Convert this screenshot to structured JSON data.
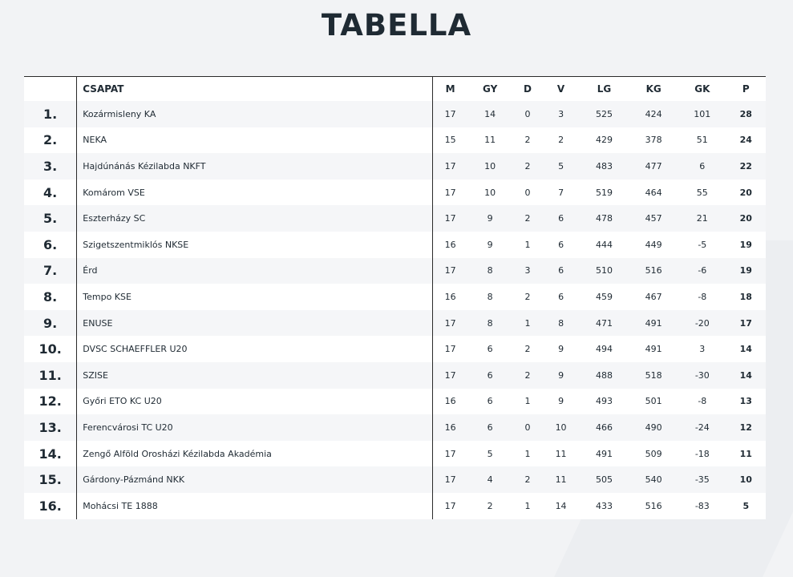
{
  "title": "TABELLA",
  "headers": {
    "rank": "",
    "team": "CSAPAT",
    "m": "M",
    "gy": "GY",
    "d": "D",
    "v": "V",
    "lg": "LG",
    "kg": "KG",
    "gk": "GK",
    "p": "P"
  },
  "rows": [
    {
      "rank": "1.",
      "team": "Kozármisleny KA",
      "m": "17",
      "gy": "14",
      "d": "0",
      "v": "3",
      "lg": "525",
      "kg": "424",
      "gk": "101",
      "p": "28"
    },
    {
      "rank": "2.",
      "team": "NEKA",
      "m": "15",
      "gy": "11",
      "d": "2",
      "v": "2",
      "lg": "429",
      "kg": "378",
      "gk": "51",
      "p": "24"
    },
    {
      "rank": "3.",
      "team": "Hajdúnánás Kézilabda NKFT",
      "m": "17",
      "gy": "10",
      "d": "2",
      "v": "5",
      "lg": "483",
      "kg": "477",
      "gk": "6",
      "p": "22"
    },
    {
      "rank": "4.",
      "team": "Komárom VSE",
      "m": "17",
      "gy": "10",
      "d": "0",
      "v": "7",
      "lg": "519",
      "kg": "464",
      "gk": "55",
      "p": "20"
    },
    {
      "rank": "5.",
      "team": "Eszterházy SC",
      "m": "17",
      "gy": "9",
      "d": "2",
      "v": "6",
      "lg": "478",
      "kg": "457",
      "gk": "21",
      "p": "20"
    },
    {
      "rank": "6.",
      "team": "Szigetszentmiklós NKSE",
      "m": "16",
      "gy": "9",
      "d": "1",
      "v": "6",
      "lg": "444",
      "kg": "449",
      "gk": "-5",
      "p": "19"
    },
    {
      "rank": "7.",
      "team": "Érd",
      "m": "17",
      "gy": "8",
      "d": "3",
      "v": "6",
      "lg": "510",
      "kg": "516",
      "gk": "-6",
      "p": "19"
    },
    {
      "rank": "8.",
      "team": "Tempo KSE",
      "m": "16",
      "gy": "8",
      "d": "2",
      "v": "6",
      "lg": "459",
      "kg": "467",
      "gk": "-8",
      "p": "18"
    },
    {
      "rank": "9.",
      "team": "ENUSE",
      "m": "17",
      "gy": "8",
      "d": "1",
      "v": "8",
      "lg": "471",
      "kg": "491",
      "gk": "-20",
      "p": "17"
    },
    {
      "rank": "10.",
      "team": "DVSC SCHAEFFLER U20",
      "m": "17",
      "gy": "6",
      "d": "2",
      "v": "9",
      "lg": "494",
      "kg": "491",
      "gk": "3",
      "p": "14"
    },
    {
      "rank": "11.",
      "team": "SZISE",
      "m": "17",
      "gy": "6",
      "d": "2",
      "v": "9",
      "lg": "488",
      "kg": "518",
      "gk": "-30",
      "p": "14"
    },
    {
      "rank": "12.",
      "team": "Győri ETO KC U20",
      "m": "16",
      "gy": "6",
      "d": "1",
      "v": "9",
      "lg": "493",
      "kg": "501",
      "gk": "-8",
      "p": "13"
    },
    {
      "rank": "13.",
      "team": "Ferencvárosi TC U20",
      "m": "16",
      "gy": "6",
      "d": "0",
      "v": "10",
      "lg": "466",
      "kg": "490",
      "gk": "-24",
      "p": "12"
    },
    {
      "rank": "14.",
      "team": "Zengő Alföld Orosházi Kézilabda Akadémia",
      "m": "17",
      "gy": "5",
      "d": "1",
      "v": "11",
      "lg": "491",
      "kg": "509",
      "gk": "-18",
      "p": "11"
    },
    {
      "rank": "15.",
      "team": "Gárdony-Pázmánd NKK",
      "m": "17",
      "gy": "4",
      "d": "2",
      "v": "11",
      "lg": "505",
      "kg": "540",
      "gk": "-35",
      "p": "10"
    },
    {
      "rank": "16.",
      "team": "Mohácsi TE 1888",
      "m": "17",
      "gy": "2",
      "d": "1",
      "v": "14",
      "lg": "433",
      "kg": "516",
      "gk": "-83",
      "p": "5"
    }
  ]
}
